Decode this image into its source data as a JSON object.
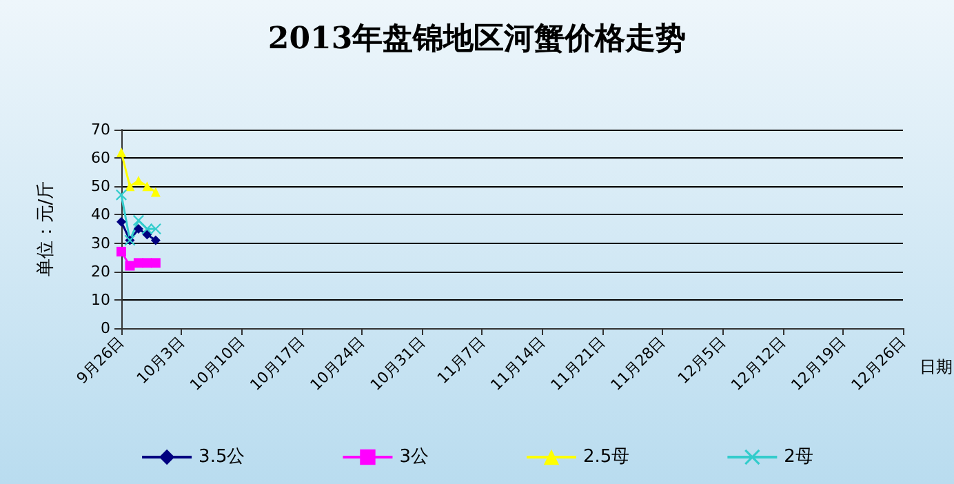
{
  "chart_data": {
    "type": "line",
    "title": "2013年盘锦地区河蟹价格走势",
    "xlabel": "日期",
    "ylabel": "单位：元/斤",
    "x": [
      "2013-09-26",
      "2013-09-27",
      "2013-09-28",
      "2013-09-29",
      "2013-09-30"
    ],
    "series": [
      {
        "name": "3.5公",
        "color": "#000080",
        "marker": "diamond",
        "values": [
          37.5,
          31,
          35,
          33,
          31
        ]
      },
      {
        "name": "3公",
        "color": "#ff00ff",
        "marker": "square",
        "values": [
          27,
          22,
          23,
          23,
          23
        ]
      },
      {
        "name": "2.5母",
        "color": "#ffff00",
        "marker": "triangle",
        "values": [
          62,
          50,
          52,
          50,
          48
        ]
      },
      {
        "name": "2母",
        "color": "#33cccc",
        "marker": "cross",
        "values": [
          47,
          31,
          38,
          35,
          35
        ]
      }
    ],
    "xlim": [
      "2013-09-26",
      "2013-12-26"
    ],
    "xticks": [
      {
        "value": "2013-09-26",
        "label": "9月26日"
      },
      {
        "value": "2013-10-03",
        "label": "10月3日"
      },
      {
        "value": "2013-10-10",
        "label": "10月10日"
      },
      {
        "value": "2013-10-17",
        "label": "10月17日"
      },
      {
        "value": "2013-10-24",
        "label": "10月24日"
      },
      {
        "value": "2013-10-31",
        "label": "10月31日"
      },
      {
        "value": "2013-11-07",
        "label": "11月7日"
      },
      {
        "value": "2013-11-14",
        "label": "11月14日"
      },
      {
        "value": "2013-11-21",
        "label": "11月21日"
      },
      {
        "value": "2013-11-28",
        "label": "11月28日"
      },
      {
        "value": "2013-12-05",
        "label": "12月5日"
      },
      {
        "value": "2013-12-12",
        "label": "12月12日"
      },
      {
        "value": "2013-12-19",
        "label": "12月19日"
      },
      {
        "value": "2013-12-26",
        "label": "12月26日"
      }
    ],
    "ylim": [
      0,
      70
    ],
    "yticks": [
      0,
      10,
      20,
      30,
      40,
      50,
      60,
      70
    ],
    "grid": "y",
    "legend": "bottom",
    "line_style": "solid"
  }
}
